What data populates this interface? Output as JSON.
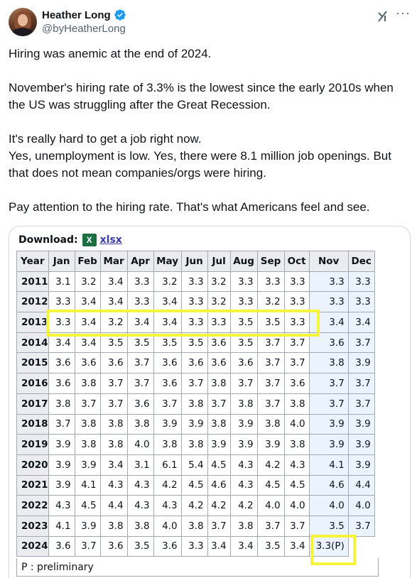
{
  "author": {
    "name": "Heather Long",
    "handle": "@byHeatherLong"
  },
  "tweet": {
    "paragraphs": [
      "Hiring was anemic at the end of 2024.",
      "November's hiring rate of 3.3% is the lowest since the early 2010s when the US was struggling after the Great Recession.",
      "It's really hard to get a job right now.\nYes, unemployment is low. Yes, there were 8.1 million job openings. But that does not mean companies/orgs were hiring.",
      "Pay attention to the hiring rate. That's what Americans feel and see."
    ]
  },
  "download": {
    "label": "Download:",
    "icon": "excel-icon",
    "link": "xlsx"
  },
  "table": {
    "headers": [
      "Year",
      "Jan",
      "Feb",
      "Mar",
      "Apr",
      "May",
      "Jun",
      "Jul",
      "Aug",
      "Sep",
      "Oct",
      "Nov",
      "Dec"
    ],
    "rows": [
      [
        "2011",
        "3.1",
        "3.2",
        "3.4",
        "3.3",
        "3.2",
        "3.3",
        "3.2",
        "3.3",
        "3.3",
        "3.3",
        "3.3",
        "3.3"
      ],
      [
        "2012",
        "3.3",
        "3.4",
        "3.4",
        "3.3",
        "3.4",
        "3.3",
        "3.2",
        "3.3",
        "3.2",
        "3.3",
        "3.3",
        "3.3"
      ],
      [
        "2013",
        "3.3",
        "3.4",
        "3.2",
        "3.4",
        "3.4",
        "3.3",
        "3.3",
        "3.5",
        "3.5",
        "3.3",
        "3.4",
        "3.4"
      ],
      [
        "2014",
        "3.4",
        "3.4",
        "3.5",
        "3.5",
        "3.5",
        "3.5",
        "3.6",
        "3.5",
        "3.7",
        "3.7",
        "3.6",
        "3.7"
      ],
      [
        "2015",
        "3.6",
        "3.6",
        "3.6",
        "3.7",
        "3.6",
        "3.6",
        "3.6",
        "3.6",
        "3.7",
        "3.7",
        "3.8",
        "3.9"
      ],
      [
        "2016",
        "3.6",
        "3.8",
        "3.7",
        "3.7",
        "3.6",
        "3.7",
        "3.8",
        "3.7",
        "3.7",
        "3.6",
        "3.7",
        "3.7"
      ],
      [
        "2017",
        "3.8",
        "3.7",
        "3.7",
        "3.6",
        "3.7",
        "3.8",
        "3.7",
        "3.8",
        "3.7",
        "3.8",
        "3.7",
        "3.7"
      ],
      [
        "2018",
        "3.7",
        "3.8",
        "3.8",
        "3.8",
        "3.9",
        "3.9",
        "3.8",
        "3.9",
        "3.8",
        "4.0",
        "3.9",
        "3.9"
      ],
      [
        "2019",
        "3.9",
        "3.8",
        "3.8",
        "4.0",
        "3.8",
        "3.8",
        "3.9",
        "3.9",
        "3.9",
        "3.8",
        "3.9",
        "3.9"
      ],
      [
        "2020",
        "3.9",
        "3.9",
        "3.4",
        "3.1",
        "6.1",
        "5.4",
        "4.5",
        "4.3",
        "4.2",
        "4.3",
        "4.1",
        "3.9"
      ],
      [
        "2021",
        "3.9",
        "4.1",
        "4.3",
        "4.3",
        "4.2",
        "4.5",
        "4.6",
        "4.3",
        "4.5",
        "4.5",
        "4.6",
        "4.4"
      ],
      [
        "2022",
        "4.3",
        "4.5",
        "4.4",
        "4.3",
        "4.3",
        "4.2",
        "4.2",
        "4.2",
        "4.0",
        "4.0",
        "4.0",
        "4.0"
      ],
      [
        "2023",
        "4.1",
        "3.9",
        "3.8",
        "3.8",
        "4.0",
        "3.8",
        "3.7",
        "3.8",
        "3.7",
        "3.7",
        "3.5",
        "3.7"
      ],
      [
        "2024",
        "3.6",
        "3.7",
        "3.6",
        "3.5",
        "3.6",
        "3.3",
        "3.4",
        "3.4",
        "3.5",
        "3.4",
        "3.3(P)",
        ""
      ]
    ],
    "note": "P : preliminary"
  },
  "colors": {
    "highlight": "#f5f53b",
    "header_bg": "#eaecf0",
    "row_stripe": "#eaf3ff",
    "verified": "#1d9bf0"
  }
}
